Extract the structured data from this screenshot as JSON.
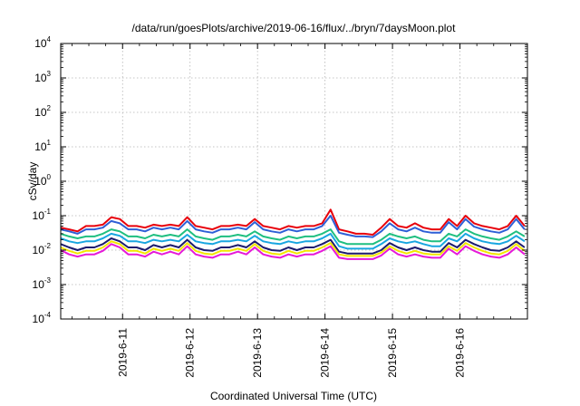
{
  "chart_data": {
    "type": "line",
    "title": "/data/run/goesPlots/archive/2019-06-16/flux/../bryn/7daysMoon.plot",
    "ylabel": "cSv/day",
    "xlabel": "Coordinated Universal Time (UTC)",
    "yscale": "log",
    "ylim": [
      0.0001,
      10000
    ],
    "xlim": [
      "2019-06-10T02:00",
      "2019-06-17T00:00"
    ],
    "grid": true,
    "y_ticks": [
      {
        "base": "10",
        "exp": "-4"
      },
      {
        "base": "10",
        "exp": "-3"
      },
      {
        "base": "10",
        "exp": "-2"
      },
      {
        "base": "10",
        "exp": "-1"
      },
      {
        "base": "10",
        "exp": "0"
      },
      {
        "base": "10",
        "exp": "1"
      },
      {
        "base": "10",
        "exp": "2"
      },
      {
        "base": "10",
        "exp": "3"
      },
      {
        "base": "10",
        "exp": "4"
      }
    ],
    "x_ticks": [
      "2019-6-11",
      "2019-6-12",
      "2019-6-13",
      "2019-6-14",
      "2019-6-15",
      "2019-6-16"
    ],
    "x_tick_dates": [
      "2019-06-11T00:00",
      "2019-06-12T00:00",
      "2019-06-13T00:00",
      "2019-06-14T00:00",
      "2019-06-15T00:00",
      "2019-06-16T00:00"
    ],
    "x": [
      "2019-06-10T02:00",
      "2019-06-10T05:00",
      "2019-06-10T08:00",
      "2019-06-10T11:00",
      "2019-06-10T14:00",
      "2019-06-10T17:00",
      "2019-06-10T20:00",
      "2019-06-10T23:00",
      "2019-06-11T02:00",
      "2019-06-11T05:00",
      "2019-06-11T08:00",
      "2019-06-11T11:00",
      "2019-06-11T14:00",
      "2019-06-11T17:00",
      "2019-06-11T20:00",
      "2019-06-11T23:00",
      "2019-06-12T02:00",
      "2019-06-12T05:00",
      "2019-06-12T08:00",
      "2019-06-12T11:00",
      "2019-06-12T14:00",
      "2019-06-12T17:00",
      "2019-06-12T20:00",
      "2019-06-12T23:00",
      "2019-06-13T02:00",
      "2019-06-13T05:00",
      "2019-06-13T08:00",
      "2019-06-13T11:00",
      "2019-06-13T14:00",
      "2019-06-13T17:00",
      "2019-06-13T20:00",
      "2019-06-13T23:00",
      "2019-06-14T02:00",
      "2019-06-14T05:00",
      "2019-06-14T08:00",
      "2019-06-14T11:00",
      "2019-06-14T14:00",
      "2019-06-14T17:00",
      "2019-06-14T20:00",
      "2019-06-14T23:00",
      "2019-06-15T02:00",
      "2019-06-15T05:00",
      "2019-06-15T08:00",
      "2019-06-15T11:00",
      "2019-06-15T14:00",
      "2019-06-15T17:00",
      "2019-06-15T20:00",
      "2019-06-15T23:00",
      "2019-06-16T02:00",
      "2019-06-16T05:00",
      "2019-06-16T08:00",
      "2019-06-16T11:00",
      "2019-06-16T14:00",
      "2019-06-16T17:00",
      "2019-06-16T20:00",
      "2019-06-16T23:00"
    ],
    "series": [
      {
        "color": "#e8000b",
        "values": [
          0.045,
          0.04,
          0.035,
          0.05,
          0.05,
          0.055,
          0.09,
          0.08,
          0.05,
          0.05,
          0.045,
          0.055,
          0.05,
          0.055,
          0.05,
          0.09,
          0.05,
          0.045,
          0.04,
          0.05,
          0.05,
          0.055,
          0.05,
          0.08,
          0.05,
          0.045,
          0.04,
          0.05,
          0.045,
          0.05,
          0.05,
          0.06,
          0.15,
          0.04,
          0.035,
          0.03,
          0.03,
          0.028,
          0.045,
          0.08,
          0.05,
          0.045,
          0.06,
          0.045,
          0.04,
          0.04,
          0.08,
          0.05,
          0.1,
          0.06,
          0.05,
          0.045,
          0.04,
          0.05,
          0.1,
          0.05
        ]
      },
      {
        "color": "#2e5fd6",
        "values": [
          0.04,
          0.035,
          0.03,
          0.04,
          0.04,
          0.045,
          0.07,
          0.06,
          0.04,
          0.04,
          0.035,
          0.045,
          0.04,
          0.045,
          0.04,
          0.07,
          0.04,
          0.035,
          0.032,
          0.04,
          0.04,
          0.045,
          0.04,
          0.065,
          0.04,
          0.035,
          0.032,
          0.04,
          0.035,
          0.04,
          0.04,
          0.05,
          0.1,
          0.032,
          0.028,
          0.025,
          0.025,
          0.024,
          0.035,
          0.06,
          0.04,
          0.035,
          0.045,
          0.035,
          0.032,
          0.032,
          0.065,
          0.04,
          0.08,
          0.048,
          0.04,
          0.035,
          0.032,
          0.04,
          0.08,
          0.04
        ]
      },
      {
        "color": "#1fbf80",
        "values": [
          0.03,
          0.025,
          0.022,
          0.025,
          0.025,
          0.03,
          0.04,
          0.035,
          0.025,
          0.025,
          0.022,
          0.028,
          0.025,
          0.028,
          0.025,
          0.04,
          0.025,
          0.022,
          0.02,
          0.025,
          0.025,
          0.028,
          0.025,
          0.035,
          0.025,
          0.022,
          0.02,
          0.025,
          0.022,
          0.025,
          0.025,
          0.03,
          0.04,
          0.018,
          0.015,
          0.015,
          0.015,
          0.015,
          0.02,
          0.03,
          0.025,
          0.022,
          0.025,
          0.02,
          0.018,
          0.018,
          0.03,
          0.025,
          0.04,
          0.03,
          0.025,
          0.022,
          0.02,
          0.025,
          0.035,
          0.025
        ]
      },
      {
        "color": "#18a6e0",
        "values": [
          0.022,
          0.018,
          0.016,
          0.018,
          0.018,
          0.022,
          0.03,
          0.026,
          0.018,
          0.018,
          0.016,
          0.02,
          0.018,
          0.02,
          0.018,
          0.028,
          0.018,
          0.016,
          0.015,
          0.018,
          0.018,
          0.02,
          0.018,
          0.026,
          0.018,
          0.016,
          0.015,
          0.018,
          0.016,
          0.018,
          0.018,
          0.022,
          0.03,
          0.013,
          0.011,
          0.011,
          0.011,
          0.011,
          0.015,
          0.022,
          0.018,
          0.016,
          0.018,
          0.015,
          0.013,
          0.013,
          0.022,
          0.018,
          0.03,
          0.022,
          0.018,
          0.016,
          0.015,
          0.018,
          0.026,
          0.018
        ]
      },
      {
        "color": "#1c1c6e",
        "values": [
          0.015,
          0.012,
          0.01,
          0.012,
          0.012,
          0.015,
          0.022,
          0.018,
          0.012,
          0.012,
          0.01,
          0.014,
          0.012,
          0.014,
          0.012,
          0.02,
          0.012,
          0.01,
          0.0095,
          0.012,
          0.012,
          0.014,
          0.012,
          0.018,
          0.012,
          0.01,
          0.0095,
          0.012,
          0.01,
          0.012,
          0.012,
          0.015,
          0.02,
          0.009,
          0.008,
          0.008,
          0.008,
          0.008,
          0.01,
          0.016,
          0.012,
          0.01,
          0.012,
          0.01,
          0.009,
          0.009,
          0.016,
          0.012,
          0.02,
          0.015,
          0.012,
          0.01,
          0.0095,
          0.012,
          0.018,
          0.012
        ]
      },
      {
        "color": "#f2e600",
        "values": [
          0.012,
          0.0095,
          0.008,
          0.0095,
          0.0095,
          0.012,
          0.018,
          0.015,
          0.0095,
          0.0095,
          0.008,
          0.011,
          0.0095,
          0.011,
          0.0095,
          0.016,
          0.0095,
          0.008,
          0.0075,
          0.0095,
          0.0095,
          0.011,
          0.0095,
          0.015,
          0.0095,
          0.008,
          0.0075,
          0.0095,
          0.008,
          0.0095,
          0.0095,
          0.012,
          0.016,
          0.0075,
          0.0068,
          0.0068,
          0.0068,
          0.0068,
          0.0085,
          0.013,
          0.0095,
          0.008,
          0.0095,
          0.008,
          0.0075,
          0.0075,
          0.013,
          0.0095,
          0.016,
          0.012,
          0.0095,
          0.008,
          0.0075,
          0.0095,
          0.015,
          0.0095
        ]
      },
      {
        "color": "#e619d9",
        "values": [
          0.01,
          0.0075,
          0.0065,
          0.0075,
          0.0075,
          0.0095,
          0.015,
          0.012,
          0.0075,
          0.0075,
          0.0065,
          0.009,
          0.0075,
          0.009,
          0.0075,
          0.013,
          0.0075,
          0.0065,
          0.006,
          0.0075,
          0.0075,
          0.009,
          0.0075,
          0.012,
          0.0075,
          0.0065,
          0.006,
          0.0075,
          0.0065,
          0.0075,
          0.0075,
          0.0095,
          0.013,
          0.006,
          0.0055,
          0.0055,
          0.0055,
          0.0055,
          0.007,
          0.011,
          0.0075,
          0.0065,
          0.0075,
          0.0065,
          0.006,
          0.006,
          0.011,
          0.0075,
          0.013,
          0.0095,
          0.0075,
          0.0065,
          0.006,
          0.0075,
          0.012,
          0.0075
        ]
      }
    ]
  }
}
